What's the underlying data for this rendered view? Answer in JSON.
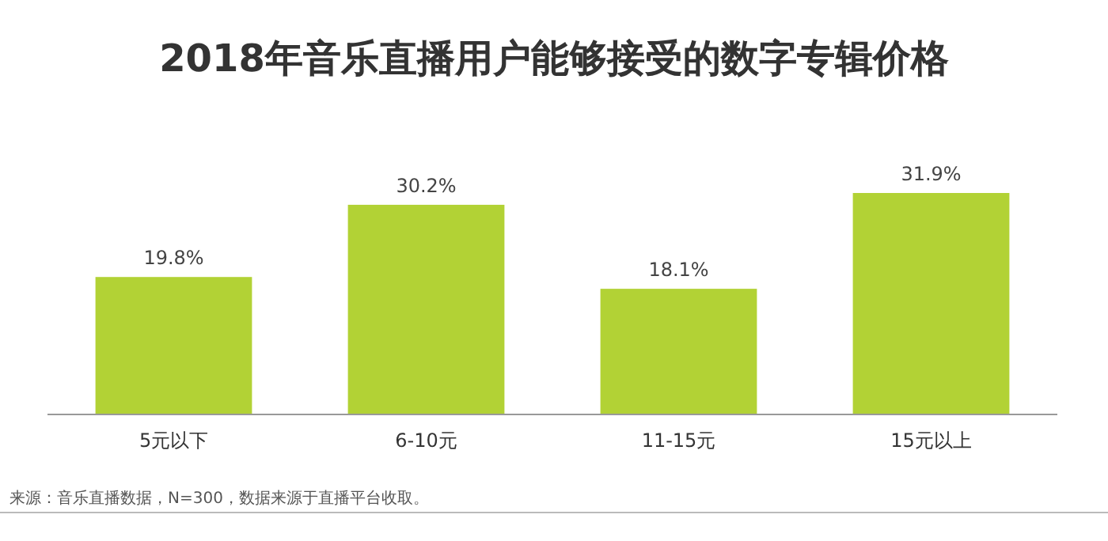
{
  "chart_data": {
    "type": "bar",
    "title": "2018年音乐直播用户能够接受的数字专辑价格",
    "categories": [
      "5元以下",
      "6-10元",
      "11-15元",
      "15元以上"
    ],
    "values": [
      19.8,
      30.2,
      18.1,
      31.9
    ],
    "value_labels": [
      "19.8%",
      "30.2%",
      "18.1%",
      "31.9%"
    ],
    "color": "#b2d235",
    "annotations": [
      "来源：音乐直播数据，N=300，数据来源于直播平台收取。"
    ]
  }
}
